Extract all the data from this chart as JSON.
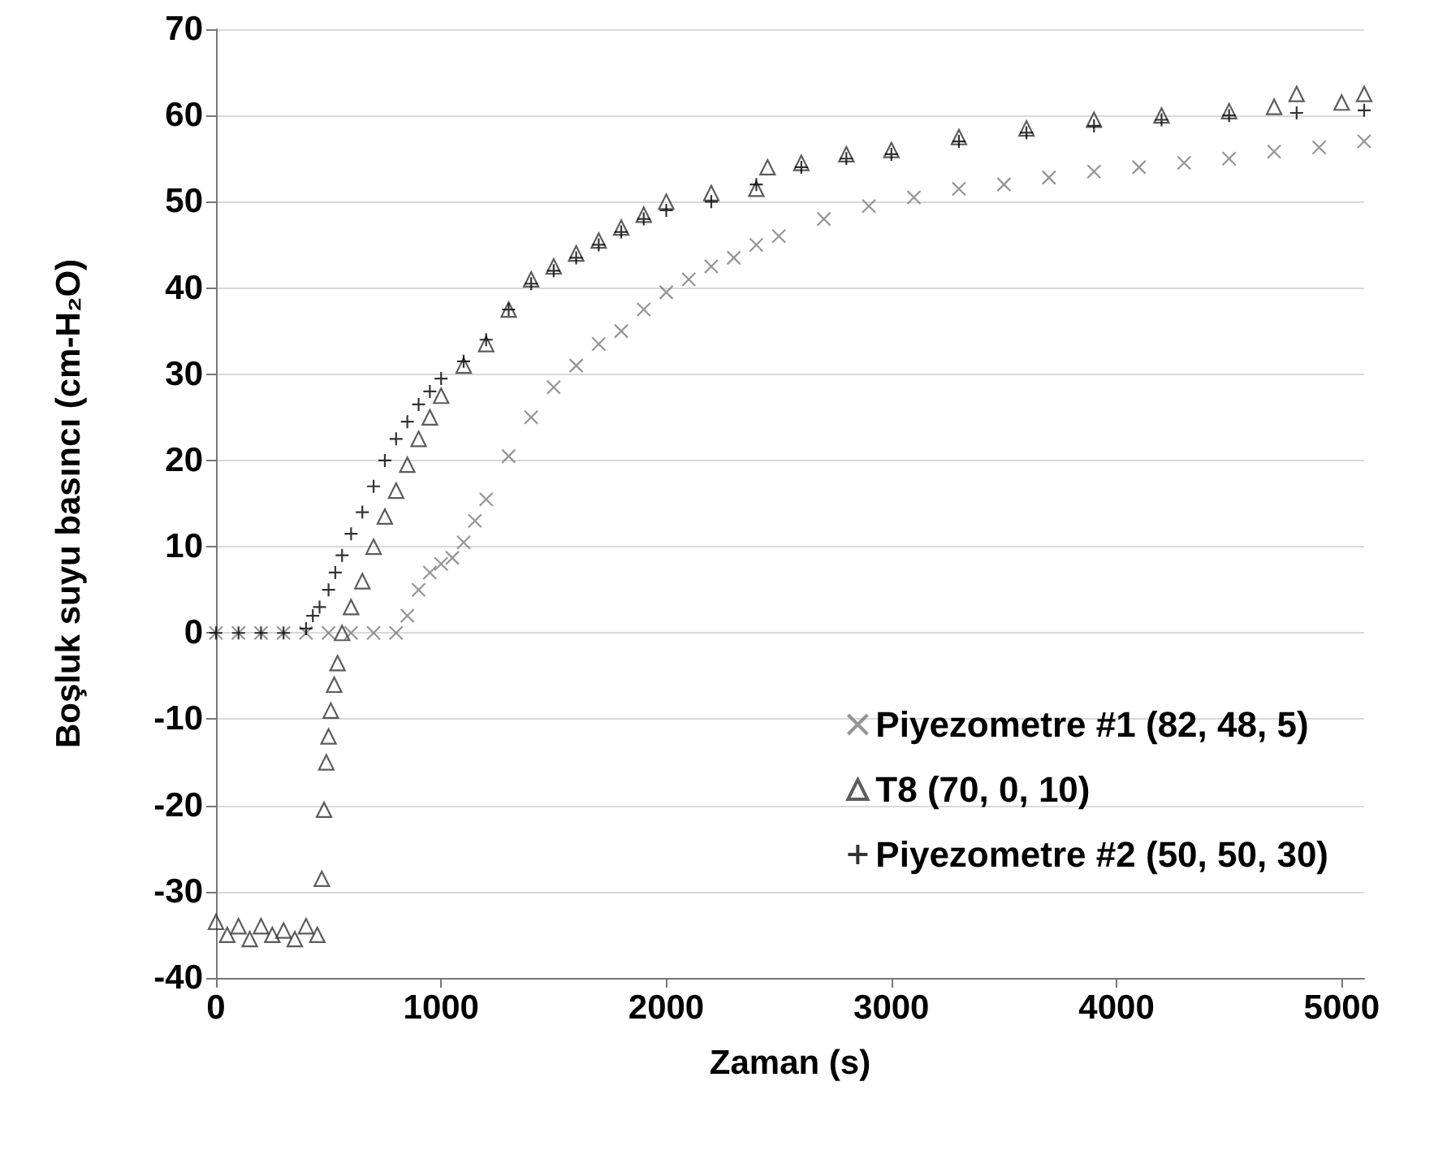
{
  "chart_data": {
    "type": "scatter",
    "xlabel": "Zaman (s)",
    "ylabel": "Boşluk suyu basıncı (cm-H₂O)",
    "xlim": [
      0,
      5100
    ],
    "xticks": [
      0,
      1000,
      2000,
      3000,
      4000,
      5000
    ],
    "ylim": [
      -40,
      70
    ],
    "yticks": [
      -40,
      -30,
      -20,
      -10,
      0,
      10,
      20,
      30,
      40,
      50,
      60,
      70
    ],
    "grid": "y",
    "legend": "bottom right",
    "series": [
      {
        "name": "Piyezometre #1 (82, 48, 5)",
        "color": "#7a7a7a",
        "marker": "x",
        "x": [
          0,
          100,
          200,
          300,
          400,
          500,
          600,
          700,
          800,
          850,
          900,
          950,
          1000,
          1050,
          1100,
          1150,
          1200,
          1300,
          1400,
          1500,
          1600,
          1700,
          1800,
          1900,
          2000,
          2100,
          2200,
          2300,
          2400,
          2500,
          2700,
          2900,
          3100,
          3300,
          3500,
          3700,
          3900,
          4100,
          4300,
          4500,
          4700,
          4900,
          5100
        ],
        "values": [
          0,
          0,
          0,
          0,
          0,
          0,
          0,
          0,
          0,
          2,
          5,
          7,
          8,
          8.7,
          10.5,
          13,
          15.5,
          20.5,
          25,
          28.5,
          31,
          33.5,
          35,
          37.5,
          39.5,
          41,
          42.5,
          43.5,
          45,
          46,
          48,
          49.5,
          50.5,
          51.5,
          52,
          52.8,
          53.5,
          54,
          54.5,
          55,
          55.8,
          56.3,
          57
        ]
      },
      {
        "name": "T8 (70, 0, 10)",
        "color": "#333333",
        "marker": "triangle",
        "x": [
          0,
          50,
          100,
          150,
          200,
          250,
          300,
          350,
          400,
          450,
          470,
          480,
          490,
          500,
          510,
          525,
          540,
          560,
          600,
          650,
          700,
          750,
          800,
          850,
          900,
          950,
          1000,
          1100,
          1200,
          1300,
          1400,
          1500,
          1600,
          1700,
          1800,
          1900,
          2000,
          2200,
          2400,
          2450,
          2600,
          2800,
          3000,
          3300,
          3600,
          3900,
          4200,
          4500,
          4700,
          4800,
          5000,
          5100
        ],
        "values": [
          -33.5,
          -35,
          -34,
          -35.5,
          -34,
          -35,
          -34.5,
          -35.5,
          -34,
          -35,
          -28.5,
          -20.5,
          -15,
          -12,
          -9,
          -6,
          -3.5,
          0,
          3,
          6,
          10,
          13.5,
          16.5,
          19.5,
          22.5,
          25,
          27.5,
          31,
          33.5,
          37.5,
          41,
          42.5,
          44,
          45.5,
          47,
          48.5,
          50,
          51,
          51.5,
          54,
          54.5,
          55.5,
          56,
          57.5,
          58.5,
          59.5,
          60,
          60.5,
          61,
          62.5,
          61.5,
          62.5
        ]
      },
      {
        "name": "Piyezometre #2 (50, 50, 30)",
        "color": "#000000",
        "marker": "plus",
        "x": [
          0,
          100,
          200,
          300,
          400,
          430,
          460,
          500,
          530,
          560,
          600,
          650,
          700,
          750,
          800,
          850,
          900,
          950,
          1000,
          1100,
          1200,
          1300,
          1400,
          1500,
          1600,
          1700,
          1800,
          1900,
          2000,
          2200,
          2400,
          2600,
          2800,
          3000,
          3300,
          3600,
          3900,
          4200,
          4500,
          4800,
          5100
        ],
        "values": [
          0,
          0,
          0,
          0,
          0.5,
          2,
          3,
          5,
          7,
          9,
          11.5,
          14,
          17,
          20,
          22.5,
          24.5,
          26.5,
          28,
          29.5,
          31.5,
          34,
          37.5,
          40.5,
          42,
          43.5,
          45,
          46.5,
          48,
          49,
          50,
          52,
          54,
          55,
          55.5,
          57,
          58,
          58.8,
          59.5,
          60,
          60.3,
          60.6
        ]
      }
    ]
  }
}
